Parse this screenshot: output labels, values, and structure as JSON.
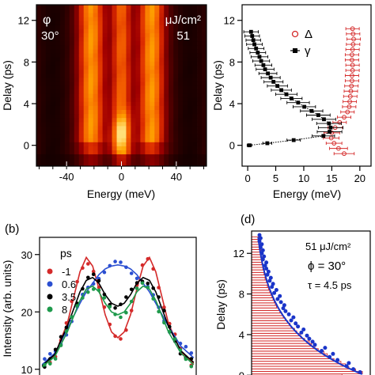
{
  "chart_data": [
    {
      "type": "heatmap",
      "panel_label": "",
      "xlabel": "Energy (meV)",
      "ylabel": "Delay (ps)",
      "xlim": [
        -62,
        62
      ],
      "ylim": [
        -2,
        13.5
      ],
      "xticks": [
        -40,
        0,
        40
      ],
      "yticks": [
        0,
        4,
        8,
        12
      ],
      "xtick_labels": [
        "-40",
        "0",
        "40"
      ],
      "ytick_labels": [
        "0",
        "4",
        "8",
        "12"
      ],
      "annotations": {
        "angle_symbol": "φ",
        "angle_value": "30°",
        "fluence_unit": "μJ/cm²",
        "fluence_value": "51"
      },
      "colorscale": [
        "#120000",
        "#5a0000",
        "#a00000",
        "#dc2c00",
        "#f56400",
        "#ffa400",
        "#ffe07a"
      ],
      "features": {
        "bands": [
          {
            "center": -22,
            "width": 9,
            "intensity": 0.7
          },
          {
            "center": 22,
            "width": 9,
            "intensity": 0.7
          },
          {
            "center": 0,
            "width": 7,
            "intensity": 0.55,
            "early_delay_peak": 0.95
          }
        ],
        "grid": false
      }
    },
    {
      "type": "scatter",
      "panel_label": "",
      "xlabel": "Energy (meV)",
      "ylabel": "Delay (ps)",
      "xlim": [
        -1,
        22
      ],
      "ylim": [
        -2,
        13.5
      ],
      "xticks": [
        0,
        5,
        10,
        15,
        20
      ],
      "yticks": [
        0,
        4,
        8,
        12
      ],
      "xtick_labels": [
        "0",
        "5",
        "10",
        "15",
        "20"
      ],
      "ytick_labels": [
        "0",
        "4",
        "8",
        "12"
      ],
      "legend": {
        "placement": "top-right",
        "entries": [
          "Δ",
          "γ"
        ]
      },
      "series": [
        {
          "name": "Δ",
          "color": "#d42a2a",
          "marker": "open-circle",
          "x": [
            17.2,
            16.2,
            15.4,
            14.9,
            15.0,
            15.6,
            16.4,
            17.2,
            17.8,
            18.1,
            18.2,
            18.3,
            18.4,
            18.5,
            18.6,
            18.6,
            18.7,
            18.7,
            18.6,
            18.6,
            18.7,
            18.8,
            18.9,
            18.8,
            18.7
          ],
          "y": [
            -0.8,
            -0.3,
            0.2,
            0.7,
            1.2,
            1.7,
            2.2,
            2.7,
            3.2,
            3.7,
            4.2,
            4.7,
            5.2,
            5.7,
            6.2,
            6.7,
            7.2,
            7.7,
            8.2,
            8.7,
            9.2,
            9.7,
            10.2,
            10.7,
            11.2
          ],
          "xerr": [
            1.8,
            1.6,
            1.4,
            1.4,
            1.4,
            1.3,
            1.2,
            1.2,
            1.2,
            1.2,
            1.2,
            1.2,
            1.2,
            1.2,
            1.2,
            1.2,
            1.2,
            1.2,
            1.2,
            1.2,
            1.2,
            1.2,
            1.2,
            1.2,
            1.2
          ]
        },
        {
          "name": "γ",
          "color": "#000000",
          "marker": "filled-square",
          "x": [
            0.3,
            3.5,
            8.2,
            13.5,
            14.6,
            14.8,
            14.5,
            13.6,
            12.6,
            11.4,
            10.1,
            9.0,
            7.8,
            6.9,
            6.0,
            5.3,
            4.6,
            4.1,
            3.6,
            3.1,
            2.8,
            2.4,
            2.1,
            1.8,
            1.5,
            1.2,
            1.0,
            0.8,
            0.6
          ],
          "y": [
            0.0,
            0.2,
            0.5,
            0.9,
            1.3,
            1.7,
            2.1,
            2.5,
            2.9,
            3.3,
            3.7,
            4.1,
            4.5,
            4.9,
            5.3,
            5.7,
            6.1,
            6.5,
            6.9,
            7.3,
            7.7,
            8.1,
            8.5,
            8.9,
            9.3,
            9.7,
            10.1,
            10.5,
            10.9
          ],
          "xerr": [
            0.4,
            0.8,
            1.2,
            2.0,
            2.2,
            2.2,
            2.2,
            2.1,
            2.1,
            2.0,
            2.0,
            2.0,
            1.9,
            1.9,
            1.8,
            1.8,
            1.7,
            1.7,
            1.6,
            1.6,
            1.5,
            1.5,
            1.5,
            1.4,
            1.4,
            1.4,
            1.3,
            1.3,
            1.3
          ]
        }
      ]
    },
    {
      "type": "line",
      "panel_label": "(b)",
      "xlabel": "",
      "ylabel": "Intensity (arb. units)",
      "xlim": [
        -62,
        62
      ],
      "ylim": [
        9,
        33
      ],
      "yticks": [
        10,
        20,
        30
      ],
      "ytick_labels": [
        "10",
        "20",
        "30"
      ],
      "legend": {
        "placement": "top-left",
        "title": "ps",
        "entries": [
          "-1",
          "0.6",
          "3.5",
          "8"
        ]
      },
      "series": [
        {
          "name": "-1",
          "color": "#d42a2a",
          "x": [
            -60,
            -50,
            -40,
            -30,
            -25,
            -20,
            -15,
            -10,
            -5,
            0,
            5,
            10,
            15,
            20,
            25,
            30,
            40,
            50,
            60
          ],
          "y": [
            10.5,
            12.5,
            18.0,
            27.0,
            29.5,
            28.0,
            24.0,
            19.5,
            16.5,
            15.5,
            16.5,
            19.5,
            24.0,
            28.0,
            29.5,
            27.0,
            18.0,
            13.0,
            11.0
          ]
        },
        {
          "name": "0.6",
          "color": "#2b4fd1",
          "x": [
            -60,
            -50,
            -40,
            -30,
            -25,
            -20,
            -15,
            -10,
            -5,
            0,
            5,
            10,
            15,
            20,
            25,
            30,
            40,
            50,
            60
          ],
          "y": [
            10.8,
            12.8,
            17.0,
            21.5,
            23.5,
            25.0,
            26.5,
            27.5,
            28.0,
            28.2,
            28.0,
            27.5,
            26.5,
            25.0,
            23.5,
            21.5,
            17.5,
            14.0,
            12.0
          ]
        },
        {
          "name": "3.5",
          "color": "#000000",
          "x": [
            -60,
            -50,
            -40,
            -30,
            -25,
            -20,
            -15,
            -10,
            -5,
            0,
            5,
            10,
            15,
            20,
            25,
            30,
            40,
            50,
            60
          ],
          "y": [
            10.6,
            12.6,
            17.5,
            23.5,
            25.5,
            26.0,
            25.0,
            23.0,
            21.5,
            21.0,
            21.5,
            23.0,
            25.0,
            26.0,
            25.5,
            23.5,
            17.5,
            13.2,
            11.2
          ]
        },
        {
          "name": "8",
          "color": "#1f9a4c",
          "x": [
            -60,
            -50,
            -40,
            -30,
            -25,
            -20,
            -15,
            -10,
            -5,
            0,
            5,
            10,
            15,
            20,
            25,
            30,
            40,
            50,
            60
          ],
          "y": [
            10.4,
            12.2,
            16.5,
            22.0,
            24.0,
            24.5,
            23.5,
            21.5,
            20.0,
            19.5,
            20.0,
            21.5,
            23.5,
            24.5,
            24.0,
            22.0,
            16.5,
            12.8,
            10.8
          ]
        }
      ]
    },
    {
      "type": "bar",
      "panel_label": "(d)",
      "xlabel": "",
      "ylabel": "Delay (ps)",
      "ylim": [
        -0.6,
        14.2
      ],
      "yticks": [
        0,
        4,
        8,
        12
      ],
      "ytick_labels": [
        "0",
        "4",
        "8",
        "12"
      ],
      "annotations": {
        "fluence": "51 μJ/cm²",
        "phi": "ϕ = 30°",
        "tau": "τ = 4.5 ps"
      },
      "fit": {
        "color": "#1a35c9",
        "tau_ps": 4.5,
        "amplitude": 9.9,
        "offset": 0.1
      },
      "bars": {
        "color": "#d42a2a",
        "orientation": "horizontal",
        "delay": [
          0.0,
          0.25,
          0.5,
          0.75,
          1.0,
          1.25,
          1.5,
          1.75,
          2.0,
          2.25,
          2.5,
          2.75,
          3.0,
          3.25,
          3.5,
          3.75,
          4.0,
          4.25,
          4.5,
          4.75,
          5.0,
          5.25,
          5.5,
          5.75,
          6.0,
          6.25,
          6.5,
          6.75,
          7.0,
          7.25,
          7.5,
          7.75,
          8.0,
          8.25,
          8.5,
          8.75,
          9.0,
          9.25,
          9.5,
          9.75,
          10.0,
          10.25,
          10.5,
          10.75,
          11.0,
          11.25,
          11.5,
          11.75,
          12.0,
          12.25,
          12.5,
          12.75,
          13.0,
          13.25,
          13.5
        ],
        "length": [
          8.0,
          9.8,
          9.2,
          8.6,
          8.3,
          7.9,
          7.3,
          7.0,
          6.7,
          6.4,
          5.9,
          5.6,
          5.3,
          5.1,
          4.7,
          4.4,
          4.3,
          4.0,
          3.8,
          3.5,
          3.4,
          3.2,
          3.0,
          2.8,
          2.7,
          2.5,
          2.4,
          2.2,
          2.1,
          2.0,
          1.9,
          1.8,
          1.7,
          1.6,
          1.5,
          1.4,
          1.4,
          1.3,
          1.2,
          1.2,
          1.1,
          1.1,
          1.0,
          1.0,
          0.9,
          0.9,
          0.9,
          0.8,
          0.8,
          0.8,
          0.8,
          0.7,
          0.7,
          0.7,
          0.7
        ]
      },
      "points": {
        "color": "#1a35c9",
        "x": [
          0.2,
          9.6,
          9.0,
          8.4,
          8.6,
          7.6,
          6.9,
          7.2,
          6.2,
          6.5,
          5.6,
          5.4,
          5.1,
          4.9,
          4.4,
          4.6,
          4.1,
          3.9,
          3.5,
          3.7,
          3.3,
          3.0,
          2.8,
          2.9,
          2.6,
          2.3,
          2.5,
          2.0,
          2.2,
          1.8,
          1.9,
          1.6,
          1.7,
          1.4,
          1.5,
          1.3,
          1.2,
          1.3,
          1.0,
          1.1,
          0.9,
          1.0,
          0.8,
          0.9,
          0.7,
          0.8,
          0.7
        ],
        "y": [
          -0.2,
          0.3,
          0.6,
          0.9,
          1.2,
          1.5,
          1.8,
          2.1,
          2.4,
          2.7,
          3.0,
          3.3,
          3.6,
          3.9,
          4.2,
          4.5,
          4.8,
          5.1,
          5.4,
          5.7,
          6.0,
          6.3,
          6.6,
          6.9,
          7.2,
          7.5,
          7.8,
          8.1,
          8.4,
          8.7,
          9.0,
          9.3,
          9.6,
          9.9,
          10.2,
          10.5,
          10.8,
          11.1,
          11.4,
          11.7,
          12.0,
          12.3,
          12.6,
          12.9,
          13.2,
          13.5,
          13.8
        ]
      }
    }
  ]
}
